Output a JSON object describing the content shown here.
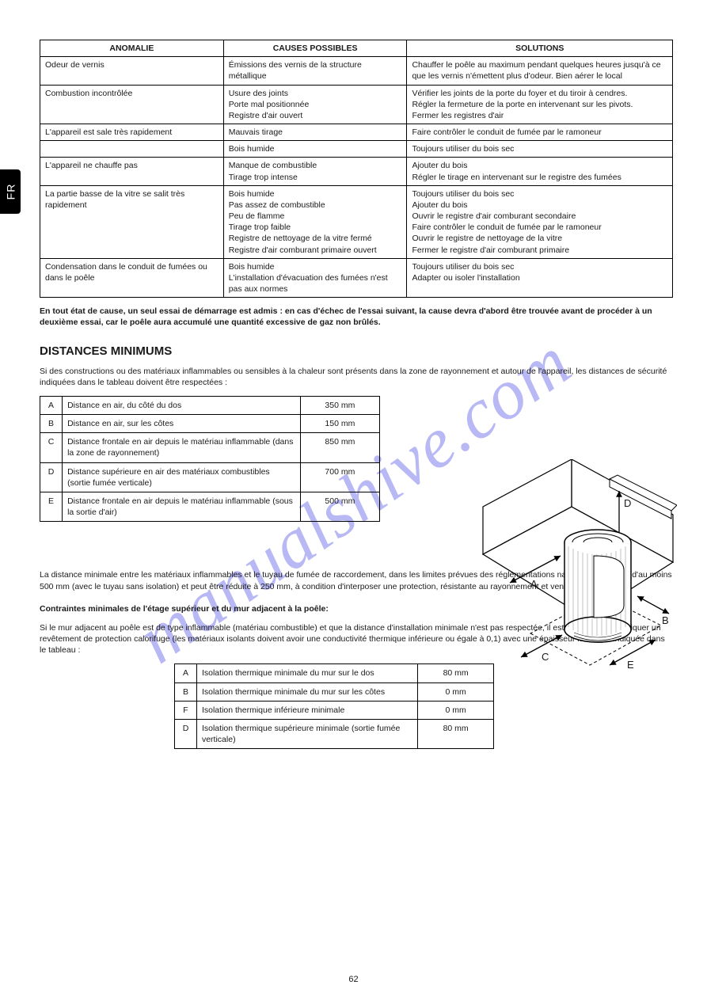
{
  "side_tab": "FR",
  "page_number": "62",
  "watermark": "manualshive.com",
  "t1": {
    "header": [
      "ANOMALIE",
      "CAUSES POSSIBLES",
      "SOLUTIONS"
    ],
    "rows": [
      [
        "Odeur de vernis",
        "Émissions des vernis de la structure métallique",
        "Chauffer le poêle au maximum pendant quelques heures jusqu'à ce que les vernis n'émettent plus d'odeur. Bien aérer le local"
      ],
      [
        "Combustion incontrôlée",
        "Usure des joints<br>Porte mal positionnée<br>Registre d'air ouvert",
        "Vérifier les joints de la porte du foyer et du tiroir à cendres.<br>Régler la fermeture de la porte en intervenant sur les pivots.<br>Fermer les registres d'air"
      ],
      [
        "L'appareil est sale très rapidement",
        "Mauvais tirage",
        "Faire contrôler le conduit de fumée par le ramoneur"
      ],
      [
        "",
        "Bois humide",
        "Toujours utiliser du bois sec"
      ],
      [
        "L'appareil ne chauffe pas",
        "Manque de combustible<br>Tirage trop intense",
        "Ajouter du bois<br>Régler le tirage en intervenant sur le registre des fumées"
      ],
      [
        "La partie basse de la vitre se salit très rapidement",
        "Bois humide<br>Pas assez de combustible<br>Peu de flamme<br>Tirage trop faible<br>Registre de nettoyage de la vitre fermé<br>Registre d'air comburant primaire ouvert",
        "Toujours utiliser du bois sec<br>Ajouter du bois<br>Ouvrir le registre d'air comburant secondaire<br>Faire contrôler le conduit de fumée par le ramoneur<br>Ouvrir le registre de nettoyage de la vitre<br>Fermer le registre d'air comburant primaire"
      ],
      [
        "Condensation dans le conduit de fumées ou dans le poêle",
        "Bois humide<br>L'installation d'évacuation des fumées n'est pas aux normes",
        "Toujours utiliser du bois sec<br>Adapter ou isoler l'installation"
      ]
    ]
  },
  "after_t1": "En tout état de cause, un seul essai de démarrage est admis : en cas d'échec de l'essai suivant, la cause devra d'abord être trouvée avant de procéder à un deuxième essai, car le poêle aura accumulé une quantité excessive de gaz non brûlés.",
  "heading_distances": "DISTANCES MINIMUMS",
  "para_distances": "Si des constructions ou des matériaux inflammables ou sensibles à la chaleur sont présents dans la zone de rayonnement et autour de l'appareil, les distances de sécurité indiquées dans le tableau doivent être respectées :",
  "t2": {
    "rows": [
      [
        "A",
        "Distance en air, du côté du dos",
        "350 mm"
      ],
      [
        "B",
        "Distance en air, sur les côtes",
        "150 mm"
      ],
      [
        "C",
        "Distance frontale en air depuis le matériau inflammable (dans la zone de rayonnement)",
        "850 mm"
      ],
      [
        "D",
        "Distance supérieure en air des matériaux combustibles (sortie fumée verticale)",
        "700 mm"
      ],
      [
        "E",
        "Distance frontale en air depuis le matériau inflammable (sous la sortie d'air)",
        "500 mm"
      ]
    ]
  },
  "diagram_notes": "La distance minimale entre les matériaux inflammables et le tuyau de fumée de raccordement, dans les limites prévues des réglementations nationales, doit être d'au moins 500 mm (avec le tuyau sans isolation) et peut être réduite à 250 mm, à condition d'interposer une protection, résistante au rayonnement et ventilée à l'arrière.",
  "heading_cont": "Contraintes minimales de l'étage supérieur et du mur adjacent à la poêle:",
  "para_cont": "Si le mur adjacent au poêle est de type inflammable (matériau combustible) et que la distance d'installation minimale n'est pas respectée, il est nécessaire d'appliquer un revêtement de protection calorifuge (les matériaux isolants doivent avoir une conductivité thermique inférieure ou égale à 0,1) avec une épaisseur minimale indiquée dans le tableau :",
  "t3": {
    "rows": [
      [
        "A",
        "Isolation thermique minimale du mur sur le dos",
        "80 mm"
      ],
      [
        "B",
        "Isolation thermique minimale du mur sur les côtes",
        "0 mm"
      ],
      [
        "F",
        "Isolation thermique inférieure minimale",
        "0 mm"
      ],
      [
        "D",
        "Isolation thermique supérieure minimale (sortie fumée verticale)",
        "80 mm"
      ]
    ]
  },
  "diagram_labels": {
    "A": "A",
    "B": "B",
    "C": "C",
    "D": "D",
    "E": "E"
  },
  "colors": {
    "text": "#1a1a1a",
    "border": "#000000",
    "watermark": "#8a8af0",
    "tab_bg": "#000000",
    "tab_fg": "#ffffff"
  }
}
